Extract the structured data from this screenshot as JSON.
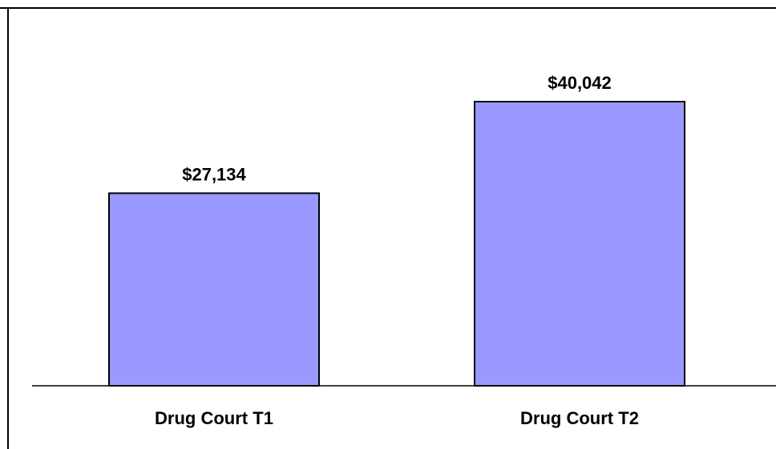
{
  "chart_data": {
    "type": "bar",
    "title": "",
    "xlabel": "",
    "ylabel": "",
    "categories": [
      "Drug Court T1",
      "Drug Court T2"
    ],
    "values": [
      27134,
      40042
    ],
    "data_labels": [
      "$27,134",
      "$40,042"
    ],
    "ylim": [
      0,
      45000
    ],
    "grid": false,
    "legend": "none",
    "colors": {
      "bar_fill": "#9999ff",
      "bar_stroke": "#000000",
      "axis": "#000000",
      "frame": "#000000",
      "text": "#000000"
    }
  }
}
